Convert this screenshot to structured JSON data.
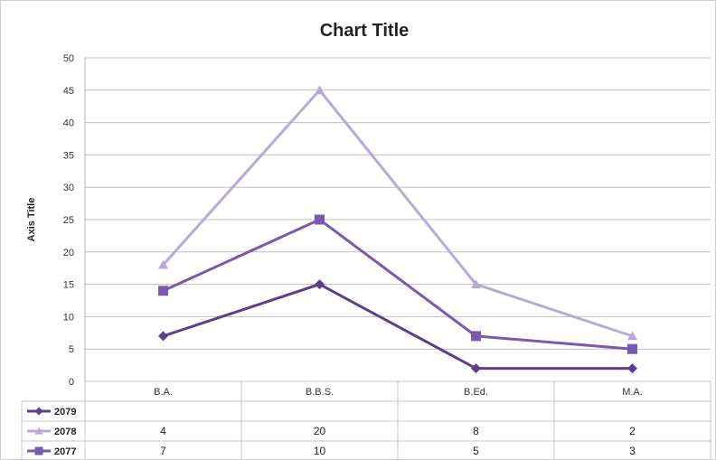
{
  "chart_data": {
    "type": "line",
    "title": "Chart Title",
    "xlabel": "",
    "ylabel": "Axis Title",
    "categories": [
      "B.A.",
      "B.B.S.",
      "B.Ed.",
      "M.A."
    ],
    "ylim": [
      0,
      50
    ],
    "yticks": [
      0,
      5,
      10,
      15,
      20,
      25,
      30,
      35,
      40,
      45,
      50
    ],
    "grid": true,
    "legend": "data-table",
    "series": [
      {
        "name": "2079",
        "values": [
          7,
          15,
          2,
          2
        ],
        "marker": "diamond",
        "color": "#5b3f8c",
        "table_values": [
          "",
          "",
          "",
          ""
        ]
      },
      {
        "name": "2078",
        "values": [
          18,
          45,
          15,
          7
        ],
        "marker": "triangle",
        "color": "#b8a9d6",
        "table_values": [
          "4",
          "20",
          "8",
          "2"
        ]
      },
      {
        "name": "2077",
        "values": [
          14,
          25,
          7,
          5
        ],
        "marker": "square",
        "color": "#7a59b0",
        "table_values": [
          "7",
          "10",
          "5",
          "3"
        ]
      }
    ]
  }
}
